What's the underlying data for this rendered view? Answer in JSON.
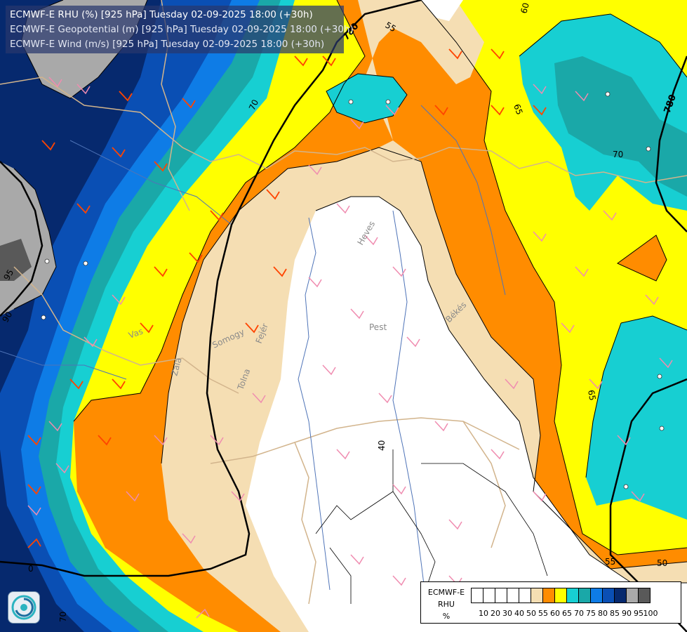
{
  "title_lines": [
    "ECMWF-E RHU (%) [925 hPa] Tuesday 02-09-2025 18:00 (+30h)",
    "ECMWF-E Geopotential (m) [925 hPa] Tuesday 02-09-2025 18:00 (+30h)",
    "ECMWF-E Wind (m/s) [925 hPa] Tuesday 02-09-2025 18:00 (+30h)"
  ],
  "legend": {
    "model": "ECMWF-E",
    "variable": "RHU",
    "unit": "%",
    "levels": [
      "10",
      "20",
      "30",
      "40",
      "50",
      "55",
      "60",
      "65",
      "70",
      "75",
      "80",
      "85",
      "90",
      "95",
      "100"
    ],
    "colors": [
      "#ffffff",
      "#ffffff",
      "#ffffff",
      "#ffffff",
      "#ffffff",
      "#f5deb3",
      "#ff8c00",
      "#ffff00",
      "#17cfd2",
      "#1aa8a8",
      "#0e7ce6",
      "#0a4fb4",
      "#06296e",
      "#a9a9a9",
      "#595959"
    ]
  },
  "contour_labels": {
    "geopotential": [
      "780",
      "780",
      "780"
    ],
    "rhu": [
      "55",
      "60",
      "65",
      "70",
      "65",
      "70",
      "95",
      "90",
      "65",
      "50",
      "55",
      "40",
      "0",
      "70"
    ]
  },
  "place_labels": [
    "Heves",
    "Pest",
    "Békés",
    "Vas",
    "Zala",
    "Somogy",
    "Tolna",
    "Fejér"
  ],
  "colors": {
    "white": "#ffffff",
    "beige": "#f5deb3",
    "orange": "#ff8c00",
    "yellow": "#ffff00",
    "cyan": "#17cfd2",
    "teal": "#1aa8a8",
    "blue": "#0e7ce6",
    "mid_blue": "#0a4fb4",
    "navy": "#06296e",
    "gray": "#a9a9a9",
    "dark_gray": "#595959",
    "border": "#d2b48c",
    "river": "#4f74b8",
    "pink_barb": "#f08cb0",
    "orange_barb": "#ff4400"
  }
}
